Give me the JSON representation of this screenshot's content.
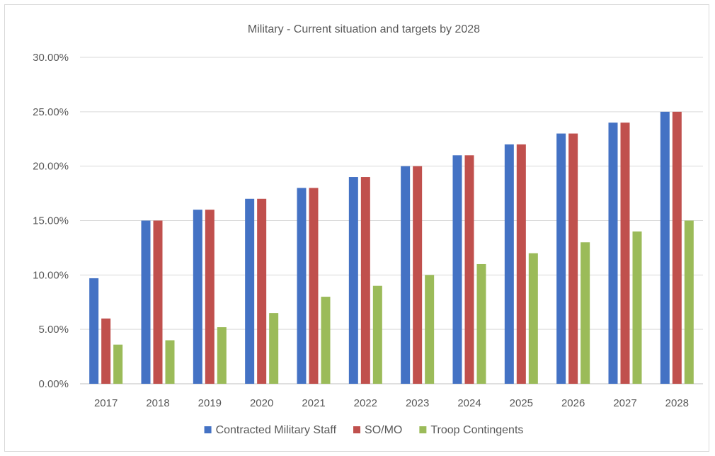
{
  "chart_data": {
    "type": "bar",
    "title": "Military - Current situation and targets by 2028",
    "categories": [
      "2017",
      "2018",
      "2019",
      "2020",
      "2021",
      "2022",
      "2023",
      "2024",
      "2025",
      "2026",
      "2027",
      "2028"
    ],
    "series": [
      {
        "name": "Contracted Military Staff",
        "color": "#4472c4",
        "values": [
          9.7,
          15,
          16,
          17,
          18,
          19,
          20,
          21,
          22,
          23,
          24,
          25
        ]
      },
      {
        "name": "SO/MO",
        "color": "#c0504d",
        "values": [
          6,
          15,
          16,
          17,
          18,
          19,
          20,
          21,
          22,
          23,
          24,
          25
        ]
      },
      {
        "name": "Troop Contingents",
        "color": "#9bbb59",
        "values": [
          3.6,
          4,
          5.2,
          6.5,
          8,
          9,
          10,
          11,
          12,
          13,
          14,
          15
        ]
      }
    ],
    "ylim": [
      0,
      30
    ],
    "y_ticks": [
      "0.00%",
      "5.00%",
      "10.00%",
      "15.00%",
      "20.00%",
      "25.00%",
      "30.00%"
    ],
    "xlabel": "",
    "ylabel": "",
    "grid": true,
    "legend_position": "bottom"
  }
}
